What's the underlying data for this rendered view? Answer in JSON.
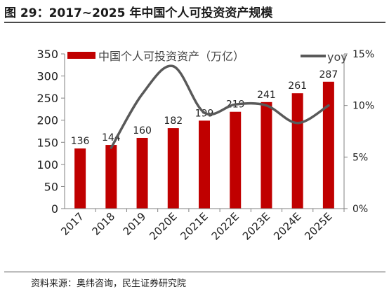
{
  "header": {
    "title": "图 29：2017~2025 年中国个人可投资资产规模"
  },
  "footer": {
    "source": "资料来源：奥纬咨询，民生证券研究院"
  },
  "chart_data": {
    "type": "bar",
    "categories": [
      "2017",
      "2018",
      "2019",
      "2020E",
      "2021E",
      "2022E",
      "2023E",
      "2024E",
      "2025E"
    ],
    "series": [
      {
        "name": "中国个人可投资资产（万亿）",
        "type": "bar",
        "axis": "left",
        "color": "#c00000",
        "values": [
          136,
          144,
          160,
          182,
          199,
          219,
          241,
          261,
          287
        ]
      },
      {
        "name": "yoy",
        "type": "line",
        "axis": "right",
        "color": "#595959",
        "values": [
          null,
          5.9,
          11.1,
          13.8,
          9.3,
          10.1,
          10.0,
          8.3,
          10.0
        ]
      }
    ],
    "y_left": {
      "min": 0,
      "max": 350,
      "ticks": [
        0,
        50,
        100,
        150,
        200,
        250,
        300,
        350
      ]
    },
    "y_right": {
      "min": 0,
      "max": 15,
      "ticks": [
        "0%",
        "5%",
        "10%",
        "15%"
      ],
      "tick_values": [
        0,
        5,
        10,
        15
      ]
    },
    "legend_placement": "top",
    "grid": false
  }
}
